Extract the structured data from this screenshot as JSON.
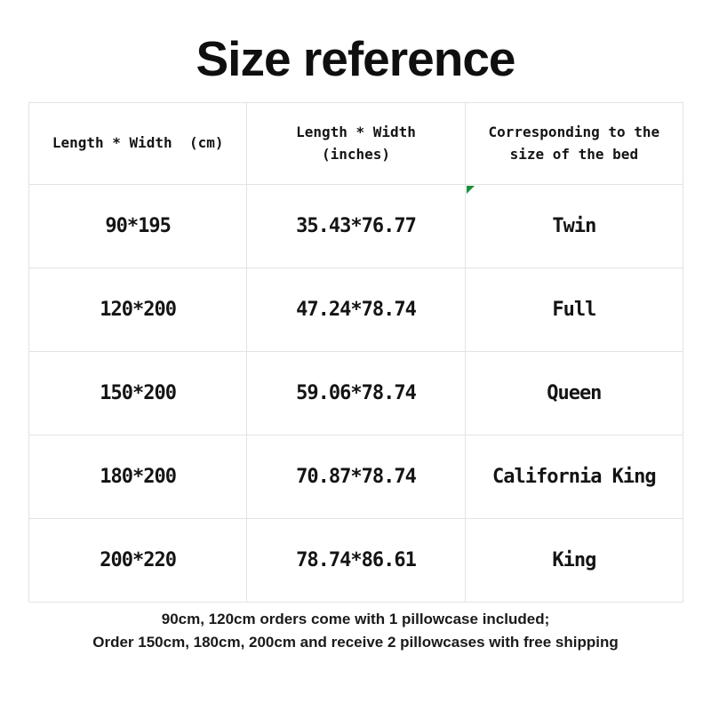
{
  "page": {
    "title": "Size reference",
    "background_color": "#ffffff",
    "text_color": "#141414",
    "table_border_color": "#e3e3e3",
    "corner_marker_color": "#1e8e3e"
  },
  "table": {
    "headers": {
      "cm": "Length * Width  (cm)",
      "inches": "Length * Width\n(inches)",
      "bed": "Corresponding to the\nsize of the bed"
    },
    "rows": [
      {
        "cm": "90*195",
        "inches": "35.43*76.77",
        "bed": "Twin"
      },
      {
        "cm": "120*200",
        "inches": "47.24*78.74",
        "bed": "Full"
      },
      {
        "cm": "150*200",
        "inches": "59.06*78.74",
        "bed": "Queen"
      },
      {
        "cm": "180*200",
        "inches": "70.87*78.74",
        "bed": "California King"
      },
      {
        "cm": "200*220",
        "inches": "78.74*86.61",
        "bed": "King"
      }
    ],
    "corner_marker_location": "first data row, bed-size cell, top-left"
  },
  "footer": {
    "line1": "90cm, 120cm orders come with 1 pillowcase included;",
    "line2": "Order 150cm, 180cm, 200cm and receive 2 pillowcases with free shipping"
  }
}
